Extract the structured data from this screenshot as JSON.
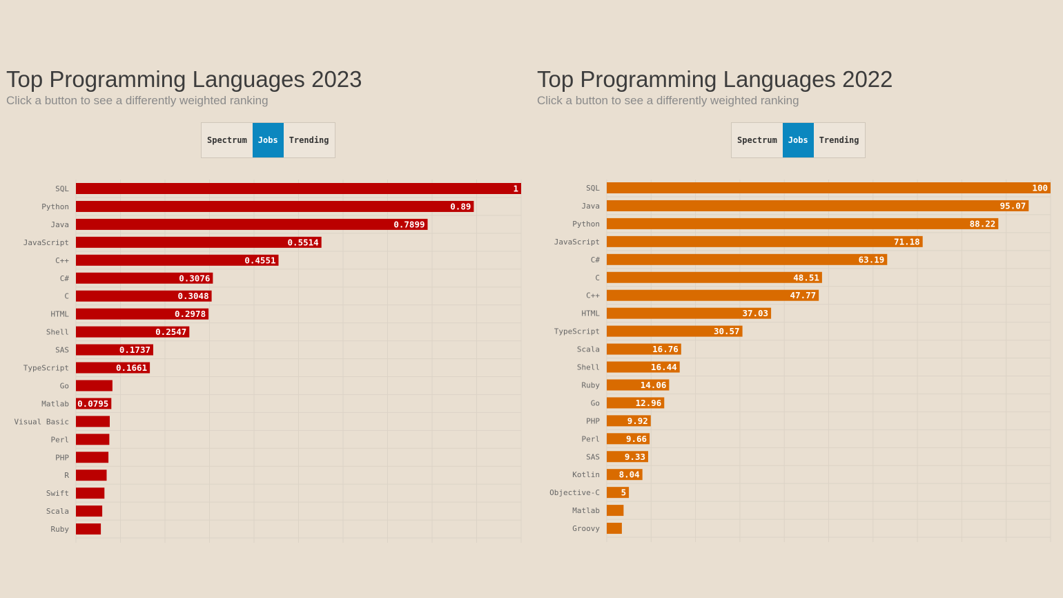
{
  "chart_data": [
    {
      "type": "bar",
      "orientation": "horizontal",
      "title": "Top Programming Languages 2023",
      "subtitle": "Click a button to see a differently weighted ranking",
      "buttons": [
        "Spectrum",
        "Jobs",
        "Trending"
      ],
      "active_button": "Jobs",
      "color": "#bb0000",
      "xlim": [
        0,
        1
      ],
      "categories": [
        "SQL",
        "Python",
        "Java",
        "JavaScript",
        "C++",
        "C#",
        "C",
        "HTML",
        "Shell",
        "SAS",
        "TypeScript",
        "Go",
        "Matlab",
        "Visual Basic",
        "Perl",
        "PHP",
        "R",
        "Swift",
        "Scala",
        "Ruby"
      ],
      "values": [
        1,
        0.8936,
        0.7899,
        0.5514,
        0.4551,
        0.3076,
        0.3048,
        0.2978,
        0.2547,
        0.1737,
        0.1661,
        0.082,
        0.0795,
        0.076,
        0.075,
        0.073,
        0.069,
        0.064,
        0.059,
        0.056
      ],
      "value_labels": [
        "1",
        "0.89",
        "0.7899",
        "0.5514",
        "0.4551",
        "0.3076",
        "0.3048",
        "0.2978",
        "0.2547",
        "0.1737",
        "0.1661",
        "",
        "0.0795",
        "",
        "",
        "",
        "",
        "",
        "",
        ""
      ]
    },
    {
      "type": "bar",
      "orientation": "horizontal",
      "title": "Top Programming Languages 2022",
      "subtitle": "Click a button to see a differently weighted ranking",
      "buttons": [
        "Spectrum",
        "Jobs",
        "Trending"
      ],
      "active_button": "Jobs",
      "color": "#d96b00",
      "xlim": [
        0,
        100
      ],
      "categories": [
        "SQL",
        "Java",
        "Python",
        "JavaScript",
        "C#",
        "C",
        "C++",
        "HTML",
        "TypeScript",
        "Scala",
        "Shell",
        "Ruby",
        "Go",
        "PHP",
        "Perl",
        "SAS",
        "Kotlin",
        "Objective-C",
        "Matlab",
        "Groovy"
      ],
      "values": [
        100,
        95.07,
        88.22,
        71.18,
        63.19,
        48.51,
        47.77,
        37.03,
        30.57,
        16.76,
        16.44,
        14.06,
        12.96,
        9.92,
        9.66,
        9.33,
        8.04,
        5,
        3.8,
        3.4
      ],
      "value_labels": [
        "100",
        "95.07",
        "88.22",
        "71.18",
        "63.19",
        "48.51",
        "47.77",
        "37.03",
        "30.57",
        "16.76",
        "16.44",
        "14.06",
        "12.96",
        "9.92",
        "9.66",
        "9.33",
        "8.04",
        "5",
        "",
        ""
      ]
    }
  ]
}
